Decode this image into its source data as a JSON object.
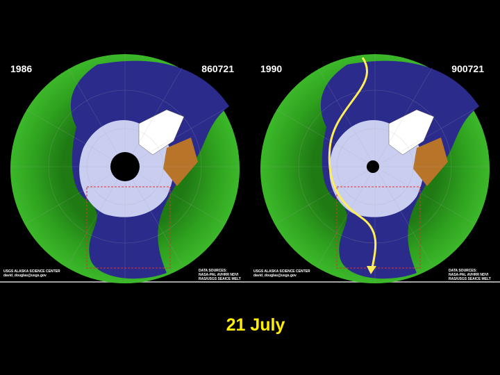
{
  "panels": [
    {
      "year": "1986",
      "date_code": "860721",
      "credit": [
        "USGS ALASKA SCIENCE CENTER",
        "david_douglas@usgs.gov"
      ],
      "sources": [
        "DATA SOURCES:",
        "NASA-PAL AVHRR NDVI",
        "RAS/USGS SEAICE MELT"
      ]
    },
    {
      "year": "1990",
      "date_code": "900721",
      "credit": [
        "USGS ALASKA SCIENCE CENTER",
        "david_douglas@usgs.gov"
      ],
      "sources": [
        "DATA SOURCES:",
        "NASA-PAL AVHRR NDVI",
        "RAS/USGS SEAICE MELT"
      ]
    }
  ],
  "title": "21 July"
}
